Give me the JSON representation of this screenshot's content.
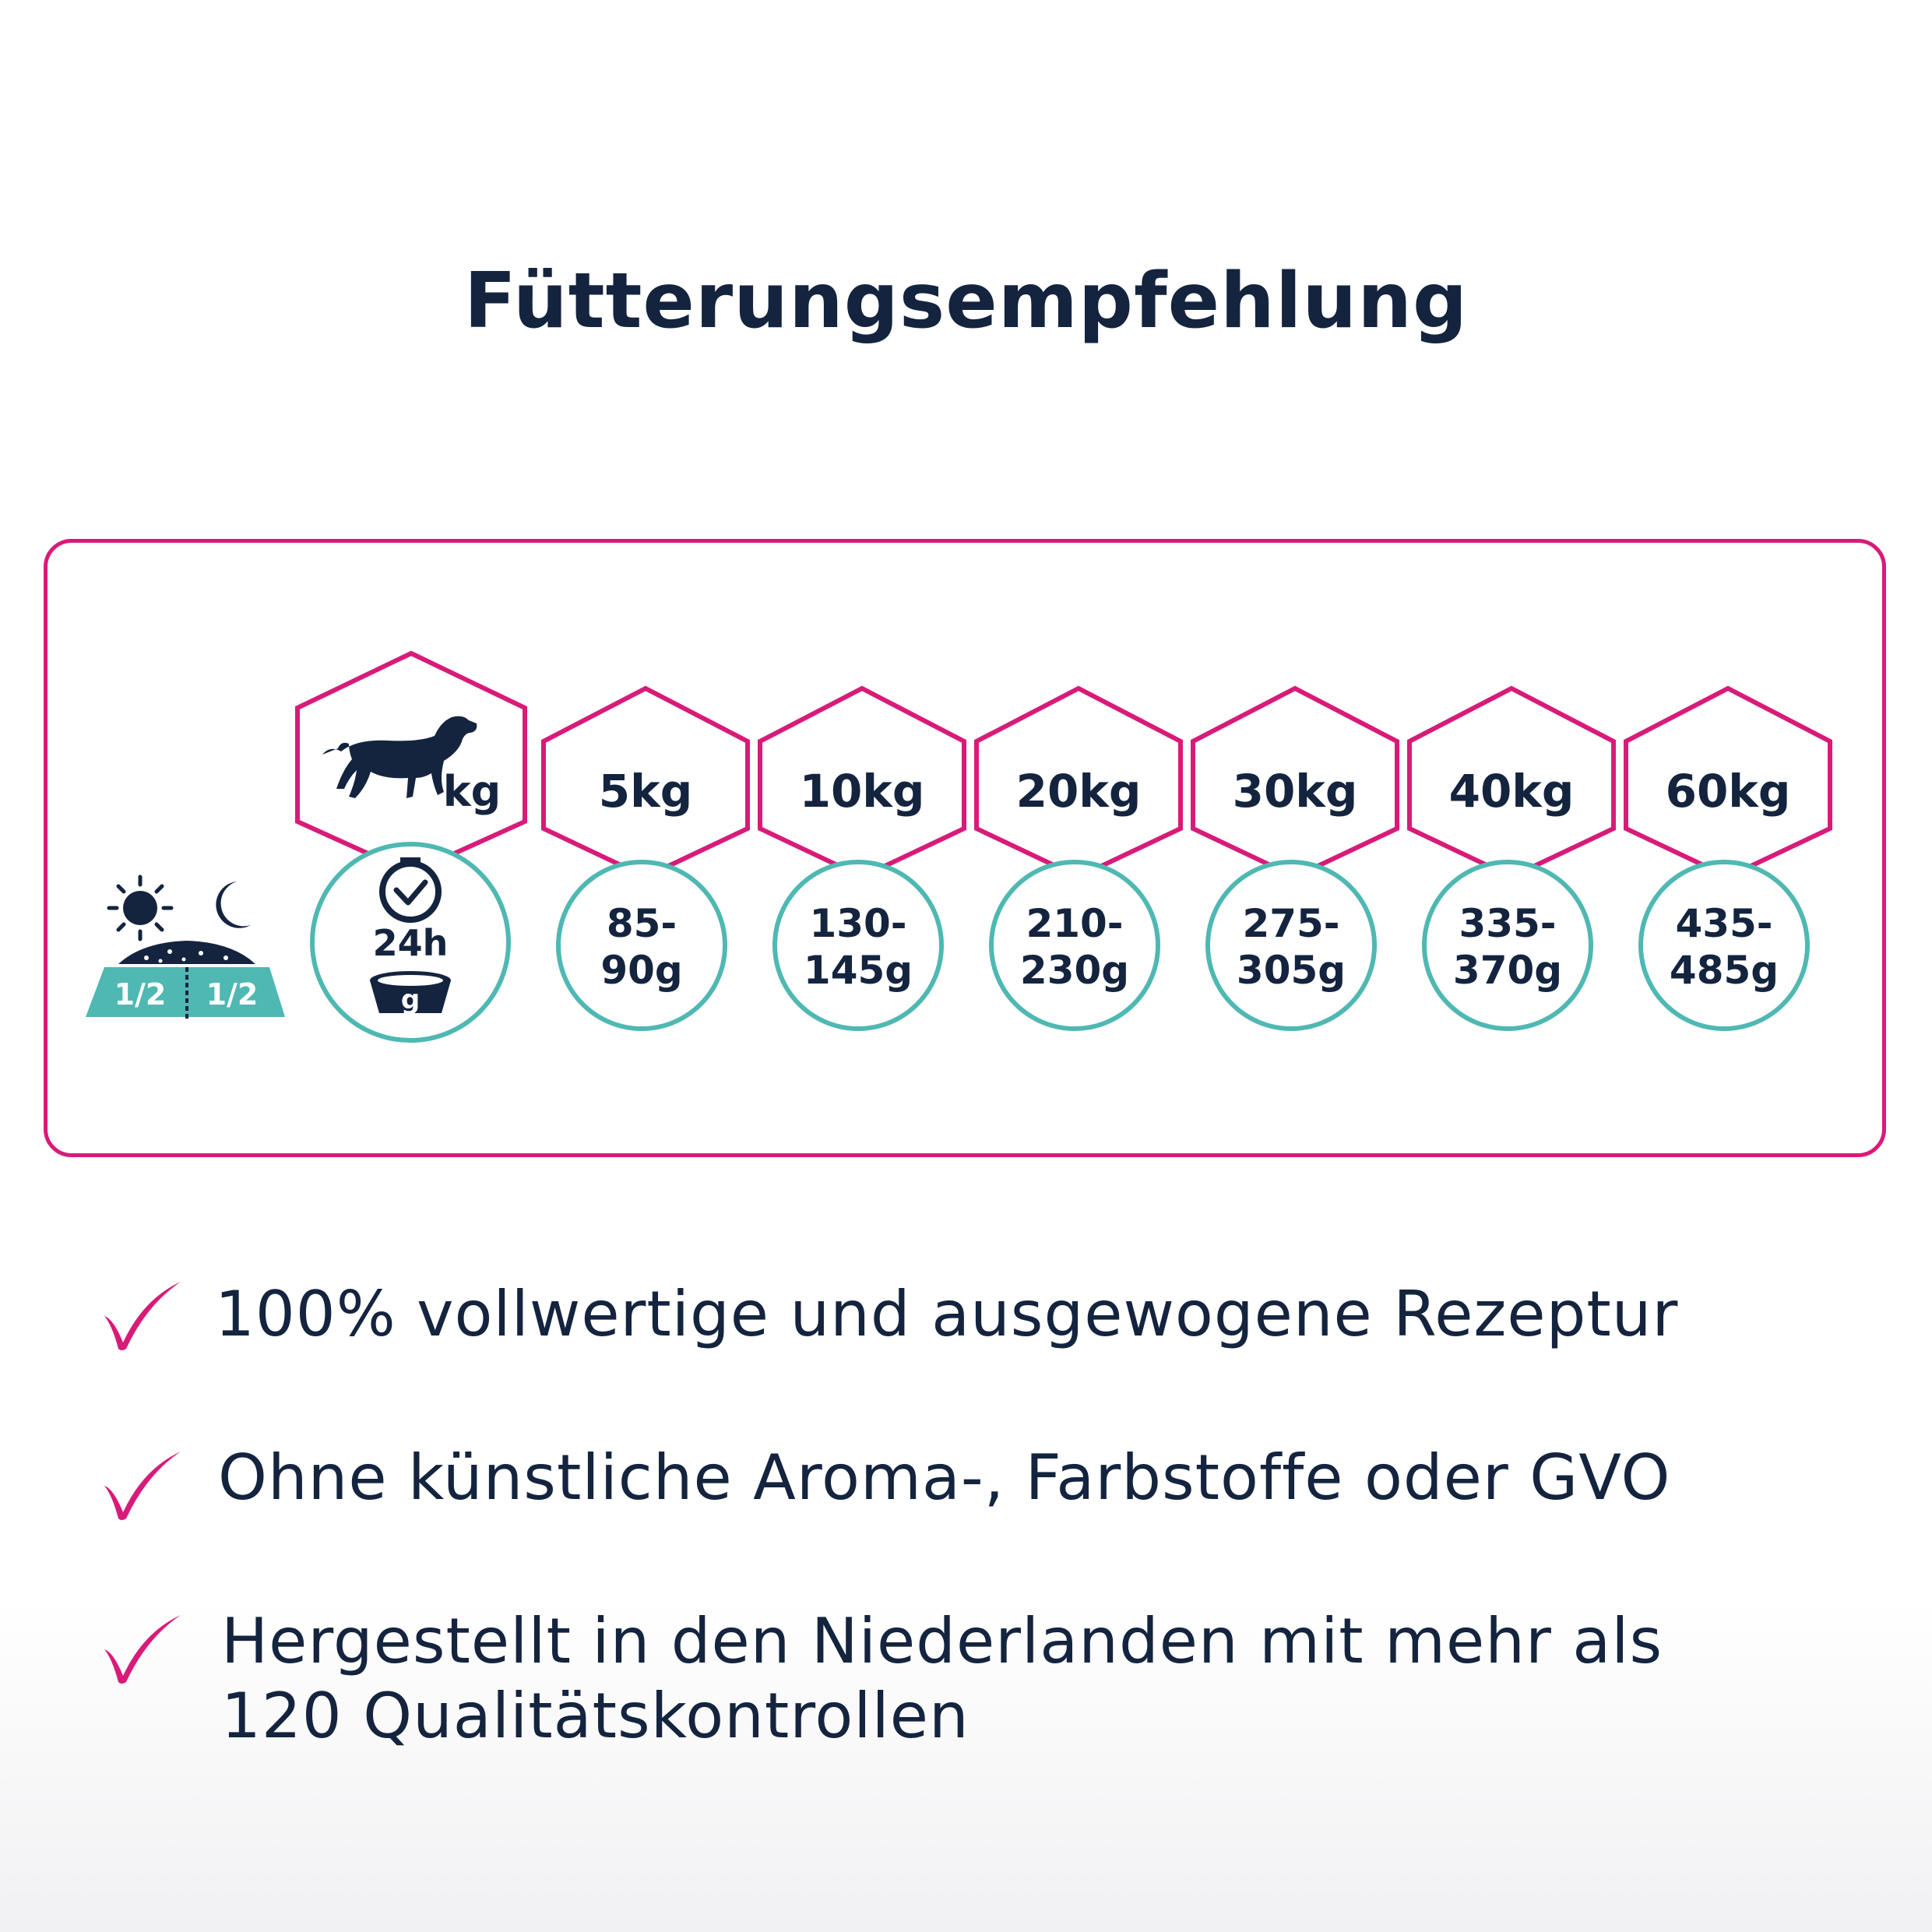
{
  "title": "Fütterungsempfehlung",
  "colors": {
    "accent": "#d81b79",
    "teal": "#4fb8b2",
    "navy": "#14243f"
  },
  "header_icons": {
    "day_night": [
      "sun-icon",
      "moon-icon",
      "bowl-icon"
    ],
    "split_label_left": "1/2",
    "split_label_right": "1/2",
    "weight_header_icon": "dog-icon",
    "weight_header_unit": "kg",
    "amount_header_icon": "clock-icon",
    "amount_header_period": "24h",
    "amount_header_unit": "g"
  },
  "feeding_table": [
    {
      "weight": "5kg",
      "amount_line1": "85-",
      "amount_line2": "90g"
    },
    {
      "weight": "10kg",
      "amount_line1": "130-",
      "amount_line2": "145g"
    },
    {
      "weight": "20kg",
      "amount_line1": "210-",
      "amount_line2": "230g"
    },
    {
      "weight": "30kg",
      "amount_line1": "275-",
      "amount_line2": "305g"
    },
    {
      "weight": "40kg",
      "amount_line1": "335-",
      "amount_line2": "370g"
    },
    {
      "weight": "60kg",
      "amount_line1": "435-",
      "amount_line2": "485g"
    }
  ],
  "bullets": [
    {
      "icon": "checkmark-icon",
      "text": "100% vollwertige und ausgewogene Rezeptur"
    },
    {
      "icon": "checkmark-icon",
      "text": "Ohne künstliche Aroma-, Farbstoffe oder GVO"
    },
    {
      "icon": "checkmark-icon",
      "text": "Hergestellt in den Niederlanden mit mehr als 120 Qualitätskontrollen"
    }
  ]
}
